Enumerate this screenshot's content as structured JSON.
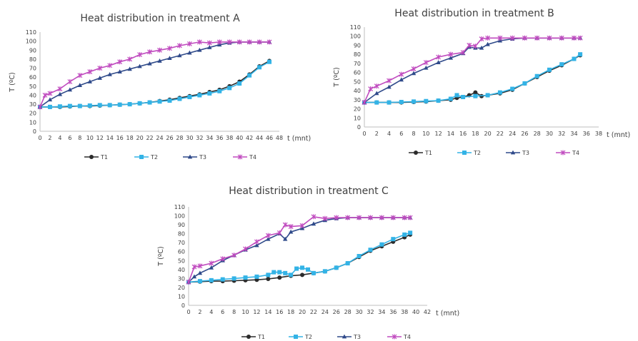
{
  "colors": {
    "T1": "#2b2b2b",
    "T2": "#33b3e6",
    "T3": "#2f4a8a",
    "T4": "#c04bbf"
  },
  "chart_data": [
    {
      "type": "line",
      "title": "Heat distribution in treatment A",
      "xlabel": "t (mnt)",
      "ylabel": "T (ºC)",
      "xlim": [
        0,
        48
      ],
      "ylim": [
        0,
        110
      ],
      "xticks": [
        0,
        2,
        4,
        6,
        8,
        10,
        12,
        14,
        16,
        18,
        20,
        22,
        24,
        26,
        28,
        30,
        32,
        34,
        36,
        38,
        40,
        42,
        44,
        46,
        48
      ],
      "yticks": [
        0,
        10,
        20,
        30,
        40,
        50,
        60,
        70,
        80,
        90,
        100,
        110
      ],
      "grid": false,
      "legend": "bottom",
      "series": [
        {
          "name": "T1",
          "x": [
            0,
            2,
            4,
            6,
            8,
            10,
            12,
            14,
            16,
            18,
            20,
            22,
            24,
            26,
            28,
            30,
            32,
            34,
            36,
            38,
            40,
            42,
            44,
            46
          ],
          "y": [
            27,
            27,
            27,
            27.5,
            28,
            28,
            28.5,
            29,
            29.5,
            30,
            31,
            32,
            33.5,
            35,
            37,
            39,
            41,
            43.5,
            46,
            50,
            55,
            63,
            72,
            78
          ]
        },
        {
          "name": "T2",
          "x": [
            0,
            2,
            4,
            6,
            8,
            10,
            12,
            14,
            16,
            18,
            20,
            22,
            24,
            26,
            28,
            30,
            32,
            34,
            36,
            38,
            40,
            42,
            44,
            46
          ],
          "y": [
            27,
            27,
            27.5,
            28,
            28,
            28.5,
            29,
            29,
            29.5,
            30,
            31,
            32,
            33,
            34,
            36,
            38,
            40,
            42,
            44.5,
            48,
            53,
            62,
            71,
            77
          ]
        },
        {
          "name": "T3",
          "x": [
            0,
            2,
            4,
            6,
            8,
            10,
            12,
            14,
            16,
            18,
            20,
            22,
            24,
            26,
            28,
            30,
            32,
            34,
            36,
            38,
            40,
            42,
            44,
            46
          ],
          "y": [
            27,
            35,
            41,
            46,
            51,
            55,
            59,
            63,
            66,
            69,
            72,
            75,
            78,
            81,
            84,
            87,
            90,
            93,
            96,
            98,
            99,
            99,
            99,
            99
          ]
        },
        {
          "name": "T4",
          "x": [
            0,
            1,
            2,
            4,
            6,
            8,
            10,
            12,
            14,
            16,
            18,
            20,
            22,
            24,
            26,
            28,
            30,
            32,
            34,
            36,
            38,
            40,
            42,
            44,
            46
          ],
          "y": [
            27,
            40,
            42,
            47,
            55,
            62,
            66,
            70,
            73,
            77,
            80,
            85,
            88,
            90,
            92,
            95,
            97,
            99,
            98,
            99,
            99,
            99,
            99,
            99,
            99
          ]
        }
      ]
    },
    {
      "type": "line",
      "title": "Heat distribution in treatment B",
      "xlabel": "t (mnt)",
      "ylabel": "T (ºC)",
      "xlim": [
        0,
        38
      ],
      "ylim": [
        0,
        110
      ],
      "xticks": [
        0,
        2,
        4,
        6,
        8,
        10,
        12,
        14,
        16,
        18,
        20,
        22,
        24,
        26,
        28,
        30,
        32,
        34,
        36,
        38
      ],
      "yticks": [
        0,
        10,
        20,
        30,
        40,
        50,
        60,
        70,
        80,
        90,
        100,
        110
      ],
      "grid": false,
      "legend": "bottom",
      "series": [
        {
          "name": "T1",
          "x": [
            0,
            2,
            4,
            6,
            8,
            10,
            12,
            14,
            15,
            16,
            17,
            18,
            19,
            20,
            22,
            24,
            26,
            28,
            30,
            32,
            34,
            35
          ],
          "y": [
            27,
            27,
            27,
            27,
            27.5,
            28,
            29,
            30,
            32,
            33,
            35,
            38,
            34,
            35,
            37,
            41,
            48,
            55,
            62,
            68,
            75,
            79
          ]
        },
        {
          "name": "T2",
          "x": [
            0,
            2,
            4,
            6,
            8,
            10,
            12,
            14,
            15,
            16,
            18,
            20,
            22,
            24,
            26,
            28,
            30,
            32,
            34,
            35
          ],
          "y": [
            27,
            27,
            27,
            27.5,
            28,
            28.5,
            29,
            31,
            35,
            33,
            34,
            35,
            38,
            42,
            48,
            56,
            63,
            69,
            75,
            80
          ]
        },
        {
          "name": "T3",
          "x": [
            0,
            2,
            4,
            6,
            8,
            10,
            12,
            14,
            16,
            17,
            18,
            19,
            20,
            22,
            24,
            26,
            28,
            30,
            32,
            34,
            35
          ],
          "y": [
            27,
            37,
            44,
            52,
            59,
            65,
            71,
            76,
            81,
            88,
            87,
            87,
            91,
            95,
            97,
            98,
            98,
            98,
            98,
            98,
            98
          ]
        },
        {
          "name": "T4",
          "x": [
            0,
            1,
            2,
            4,
            6,
            8,
            10,
            12,
            14,
            16,
            17,
            18,
            19,
            20,
            22,
            24,
            26,
            28,
            30,
            32,
            34,
            35
          ],
          "y": [
            27,
            42,
            45,
            51,
            58,
            64,
            71,
            77,
            80,
            82,
            90,
            89,
            97,
            98,
            98,
            98,
            98,
            98,
            98,
            98,
            98,
            98
          ]
        }
      ]
    },
    {
      "type": "line",
      "title": "Heat distribution in treatment C",
      "xlabel": "t (mnt)",
      "ylabel": "T (ºC)",
      "xlim": [
        0,
        42
      ],
      "ylim": [
        0,
        110
      ],
      "xticks": [
        0,
        2,
        4,
        6,
        8,
        10,
        12,
        14,
        16,
        18,
        20,
        22,
        24,
        26,
        28,
        30,
        32,
        34,
        36,
        38,
        40,
        42
      ],
      "yticks": [
        0,
        10,
        20,
        30,
        40,
        50,
        60,
        70,
        80,
        90,
        100,
        110
      ],
      "grid": false,
      "legend": "bottom",
      "series": [
        {
          "name": "T1",
          "x": [
            0,
            2,
            4,
            6,
            8,
            10,
            12,
            14,
            16,
            18,
            20,
            22,
            24,
            26,
            28,
            30,
            32,
            34,
            36,
            38,
            39
          ],
          "y": [
            26,
            26.5,
            27,
            27,
            27.5,
            28,
            28.5,
            29.5,
            31,
            33,
            34,
            36,
            38,
            42,
            47,
            54,
            61,
            66,
            71,
            76,
            79
          ]
        },
        {
          "name": "T2",
          "x": [
            0,
            2,
            4,
            6,
            8,
            10,
            12,
            14,
            15,
            16,
            17,
            18,
            19,
            20,
            21,
            22,
            24,
            26,
            28,
            30,
            32,
            34,
            36,
            38,
            39
          ],
          "y": [
            26,
            27,
            28,
            29,
            30,
            31,
            32,
            34,
            37,
            37,
            36,
            34,
            41,
            42,
            40,
            36,
            38,
            42,
            47,
            55,
            62,
            68,
            74,
            79,
            81
          ]
        },
        {
          "name": "T3",
          "x": [
            0,
            1,
            2,
            4,
            6,
            8,
            10,
            12,
            14,
            16,
            17,
            18,
            20,
            22,
            24,
            26,
            28,
            30,
            32,
            34,
            36,
            38,
            39
          ],
          "y": [
            26,
            32,
            36,
            42,
            50,
            56,
            62,
            67,
            74,
            80,
            74,
            82,
            86,
            91,
            95,
            97,
            98,
            98,
            98,
            98,
            98,
            98,
            98
          ]
        },
        {
          "name": "T4",
          "x": [
            0,
            1,
            2,
            4,
            6,
            8,
            10,
            12,
            14,
            16,
            17,
            18,
            20,
            22,
            24,
            26,
            28,
            30,
            32,
            34,
            36,
            38,
            39
          ],
          "y": [
            26,
            43,
            44,
            47,
            52,
            56,
            63,
            71,
            78,
            81,
            90,
            88,
            89,
            99,
            97,
            98,
            98,
            98,
            98,
            98,
            98,
            98,
            98
          ]
        }
      ]
    }
  ]
}
